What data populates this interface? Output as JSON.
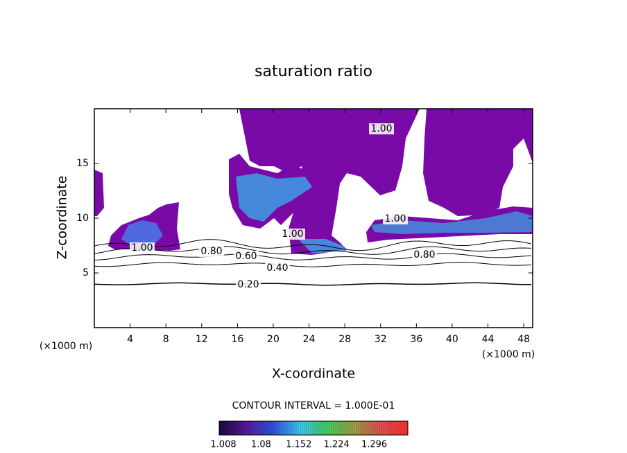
{
  "chart_data": {
    "type": "contour",
    "title": "saturation ratio",
    "x_label": "X-coordinate",
    "y_label": "Z-coordinate",
    "x_unit": "(×1000 m)",
    "y_unit": "(×1000 m)",
    "xlim": [
      0,
      49
    ],
    "xticks": [
      4,
      8,
      12,
      16,
      20,
      24,
      28,
      32,
      36,
      40,
      44,
      48
    ],
    "ylim": [
      0,
      20
    ],
    "yticks": [
      5,
      10,
      15
    ],
    "levels": [
      {
        "value": 0.2,
        "label": "0.20"
      },
      {
        "value": 0.4,
        "label": "0.40"
      },
      {
        "value": 0.6,
        "label": "0.60"
      },
      {
        "value": 0.8,
        "label": "0.80"
      },
      {
        "value": 1,
        "label": "1.00"
      }
    ],
    "contour_interval": "CONTOUR INTERVAL = 1.000E-01",
    "colorbar": {
      "clim": [
        1.008,
        1.368
      ],
      "ticks": [
        1.008,
        1.08,
        1.152,
        1.224,
        1.296
      ],
      "colors": [
        "#1a0a40",
        "#5a1a9a",
        "#3050e0",
        "#40c8f0",
        "#40d060",
        "#a0a040",
        "#e05050",
        "#ff3030"
      ]
    }
  }
}
